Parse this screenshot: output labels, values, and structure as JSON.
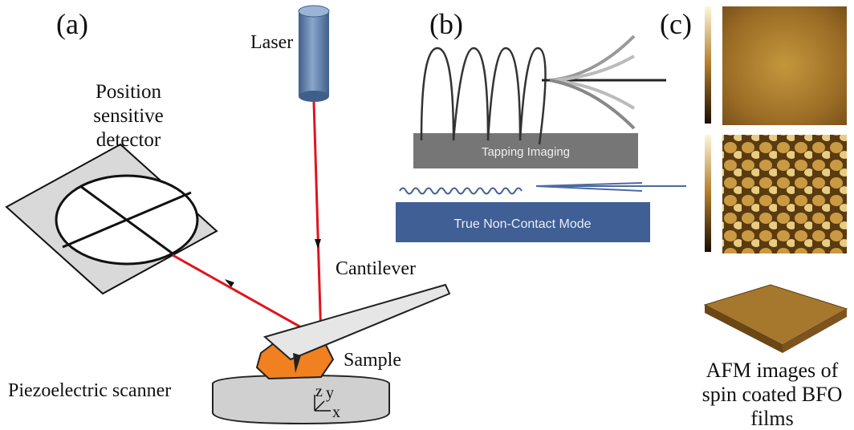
{
  "panels": [
    {
      "label": "(a)"
    },
    {
      "label": "(b)"
    },
    {
      "label": "(c)"
    }
  ],
  "panel_a": {
    "laser": "Laser",
    "detector": [
      "Position",
      "sensitive",
      "detector"
    ],
    "cantilever": "Cantilever",
    "sample": "Sample",
    "scanner": "Piezoelectric scanner",
    "axes": [
      "z",
      "y",
      "x"
    ]
  },
  "panel_b": {
    "tapping": "Tapping Imaging",
    "noncontact": "True Non-Contact Mode"
  },
  "panel_c": {
    "caption": [
      "AFM images of",
      "spin coated BFO",
      "films"
    ]
  }
}
